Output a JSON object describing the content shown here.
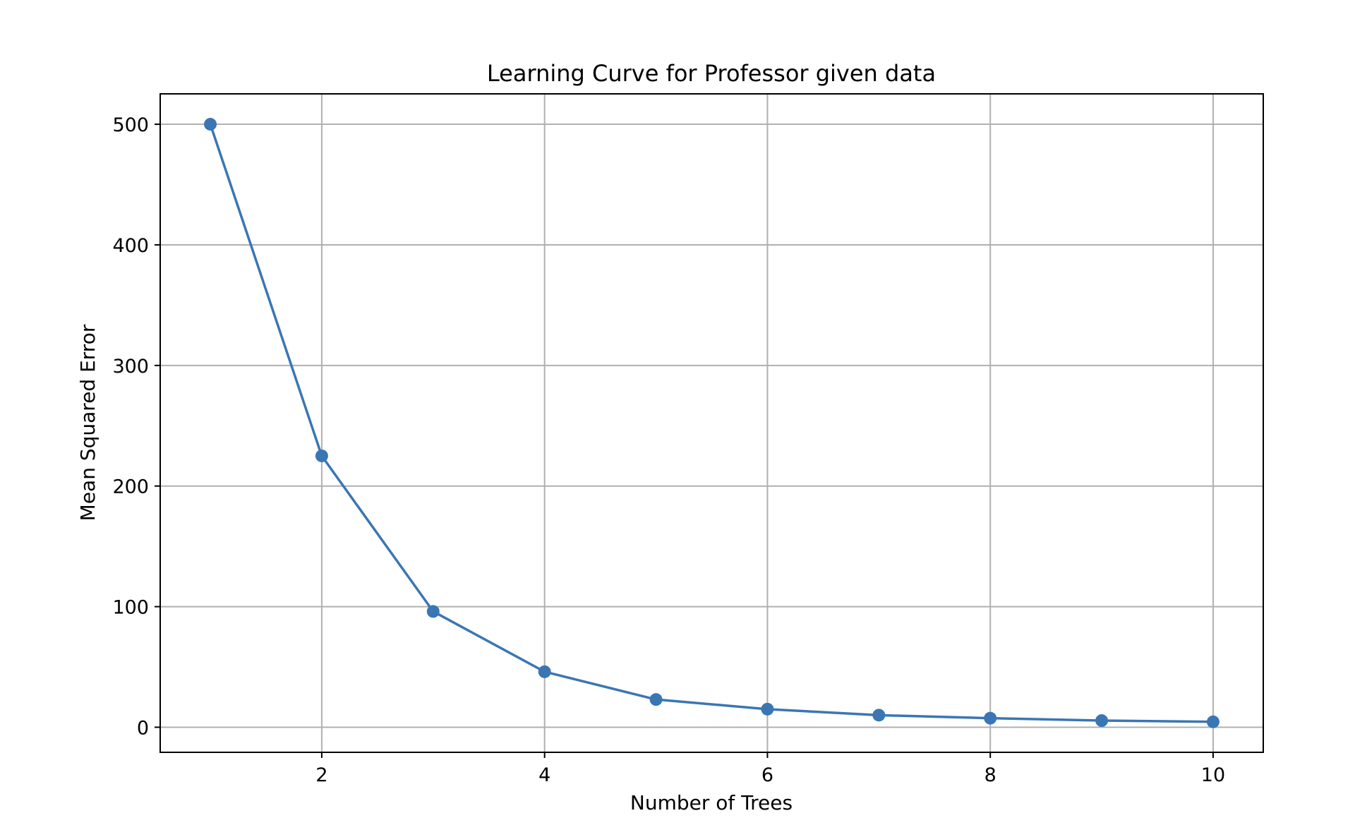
{
  "chart_data": {
    "type": "line",
    "title": "Learning Curve for Professor given data",
    "xlabel": "Number of Trees",
    "ylabel": "Mean Squared Error",
    "x": [
      1,
      2,
      3,
      4,
      5,
      6,
      7,
      8,
      9,
      10
    ],
    "series": [
      {
        "values": [
          500,
          225,
          96,
          46,
          23,
          15,
          10,
          7.5,
          5.5,
          4.5
        ],
        "color": "#3a76b3",
        "marker": "circle"
      }
    ],
    "xlim": [
      0.55,
      10.45
    ],
    "ylim": [
      -20.8,
      525.2
    ],
    "xticks": [
      2,
      4,
      6,
      8,
      10
    ],
    "yticks": [
      0,
      100,
      200,
      300,
      400,
      500
    ],
    "grid": true,
    "legend": "none"
  }
}
